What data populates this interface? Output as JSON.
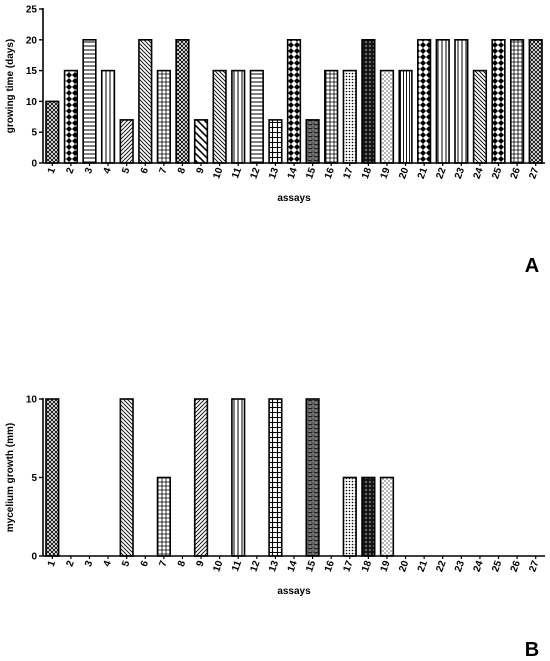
{
  "chart_data": [
    {
      "type": "bar",
      "panel_label": "A",
      "xlabel": "assays",
      "ylabel": "growing time (days)",
      "ylim": [
        0,
        25
      ],
      "yticks": [
        0,
        5,
        10,
        15,
        20,
        25
      ],
      "categories": [
        "1",
        "2",
        "3",
        "4",
        "5",
        "6",
        "7",
        "8",
        "9",
        "10",
        "11",
        "12",
        "13",
        "14",
        "15",
        "16",
        "17",
        "18",
        "19",
        "20",
        "21",
        "22",
        "23",
        "24",
        "25",
        "26",
        "27"
      ],
      "values": [
        10,
        15,
        20,
        15,
        7,
        20,
        15,
        20,
        7,
        15,
        15,
        15,
        7,
        20,
        7,
        15,
        15,
        20,
        15,
        15,
        20,
        20,
        20,
        15,
        20,
        20,
        20
      ],
      "grid": false,
      "bar_patterns": [
        "cross-fine",
        "checker",
        "hlines",
        "vlines",
        "diag-right",
        "diag-left",
        "grid",
        "cross-fine",
        "diag-wide",
        "diag-left",
        "vlines",
        "hlines",
        "grid-wide",
        "checker",
        "brick",
        "grid",
        "dots-dense",
        "diamond-dark",
        "dots",
        "vlines-dense",
        "checker",
        "vlines",
        "vlines",
        "diag-left",
        "checker",
        "grid",
        "cross-fine"
      ]
    },
    {
      "type": "bar",
      "panel_label": "B",
      "xlabel": "assays",
      "ylabel": "mycelium growth (mm)",
      "ylim": [
        0,
        10
      ],
      "yticks": [
        0,
        5,
        10
      ],
      "categories": [
        "1",
        "2",
        "3",
        "4",
        "5",
        "6",
        "7",
        "8",
        "9",
        "10",
        "11",
        "12",
        "13",
        "14",
        "15",
        "16",
        "17",
        "18",
        "19",
        "20",
        "21",
        "22",
        "23",
        "24",
        "25",
        "26",
        "27"
      ],
      "values": [
        10,
        0,
        0,
        0,
        10,
        0,
        5,
        0,
        10,
        0,
        10,
        0,
        10,
        0,
        10,
        0,
        5,
        5,
        5,
        0,
        0,
        0,
        0,
        0,
        0,
        0,
        0
      ],
      "grid": false,
      "bar_patterns": [
        "cross-fine",
        "none",
        "none",
        "none",
        "diag-left",
        "none",
        "grid",
        "none",
        "diag-right",
        "none",
        "vlines",
        "none",
        "grid-wide",
        "none",
        "brick",
        "none",
        "dots-dense",
        "diamond-dark",
        "dots",
        "none",
        "none",
        "none",
        "none",
        "none",
        "none",
        "none",
        "none"
      ]
    }
  ]
}
